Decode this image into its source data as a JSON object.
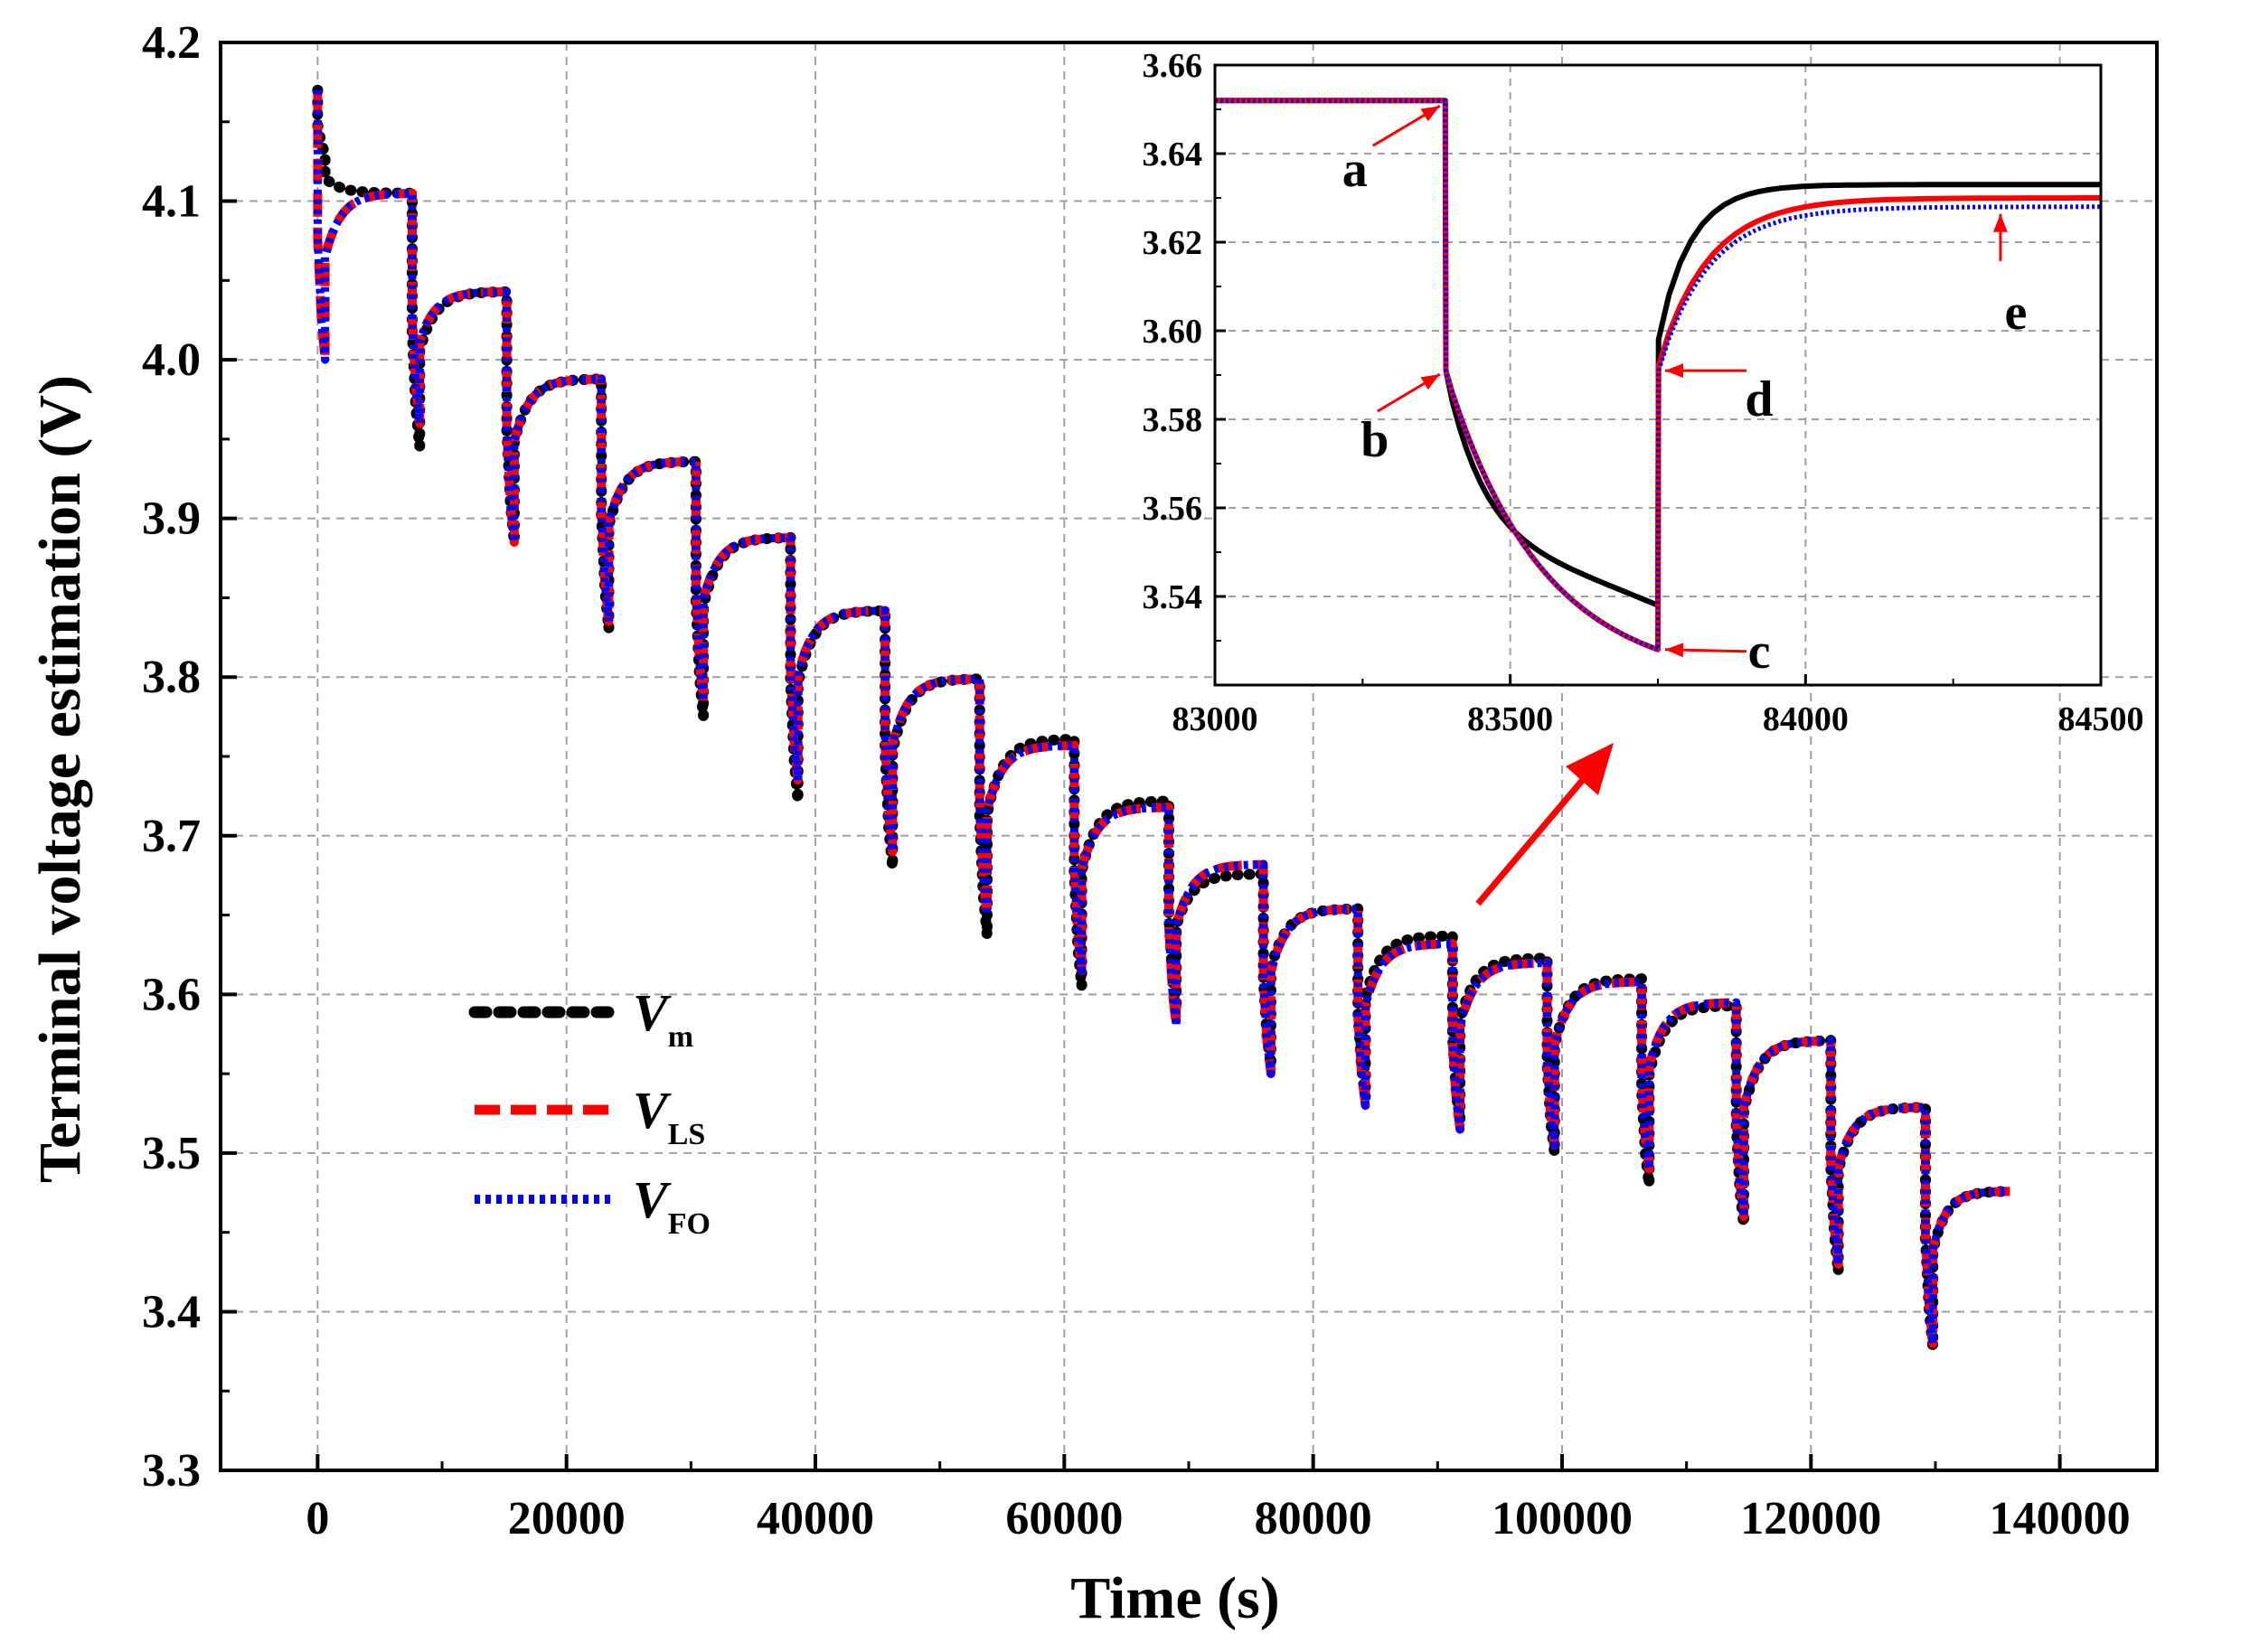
{
  "chart_data": [
    {
      "id": "main",
      "type": "line",
      "xlabel": "Time (s)",
      "ylabel": "Terminal voltage estimation  (V)",
      "xlim": [
        -7800,
        147800
      ],
      "ylim": [
        3.3,
        4.2
      ],
      "xticks": [
        0,
        20000,
        40000,
        60000,
        80000,
        100000,
        120000,
        140000
      ],
      "xtick_labels": [
        "0",
        "20000",
        "40000",
        "60000",
        "80000",
        "100000",
        "120000",
        "140000"
      ],
      "yticks": [
        3.3,
        3.4,
        3.5,
        3.6,
        3.7,
        3.8,
        3.9,
        4.0,
        4.1,
        4.2
      ],
      "ytick_labels": [
        "3.3",
        "3.4",
        "3.5",
        "3.6",
        "3.7",
        "3.8",
        "3.9",
        "4.0",
        "4.1",
        "4.2"
      ],
      "grid": true,
      "legend_position": "lower-left",
      "series": [
        {
          "name": "V_m",
          "label_main": "V",
          "label_sub": "m",
          "color": "#000000",
          "style": "dotted-heavy"
        },
        {
          "name": "V_LS",
          "label_main": "V",
          "label_sub": "LS",
          "color": "#ff0000",
          "style": "dashed"
        },
        {
          "name": "V_FO",
          "label_main": "V",
          "label_sub": "FO",
          "color": "#0000ff",
          "style": "dotted"
        }
      ],
      "pulses": [
        {
          "start": 0,
          "v_end": 4.105,
          "dip": 4.0,
          "dip_m": 4.13,
          "rest_m": 4.105
        },
        {
          "start": 7600,
          "v_end": 4.043,
          "dip": 3.96,
          "dip_m": 3.945,
          "rest_m": 4.043
        },
        {
          "start": 15200,
          "v_end": 3.988,
          "dip": 3.885,
          "dip_m": 3.885,
          "rest_m": 3.988
        },
        {
          "start": 22800,
          "v_end": 3.936,
          "dip": 3.835,
          "dip_m": 3.83,
          "rest_m": 3.936
        },
        {
          "start": 30400,
          "v_end": 3.888,
          "dip": 3.785,
          "dip_m": 3.775,
          "rest_m": 3.888
        },
        {
          "start": 38000,
          "v_end": 3.842,
          "dip": 3.735,
          "dip_m": 3.722,
          "rest_m": 3.842
        },
        {
          "start": 45600,
          "v_end": 3.799,
          "dip": 3.69,
          "dip_m": 3.68,
          "rest_m": 3.799
        },
        {
          "start": 53200,
          "v_end": 3.757,
          "dip": 3.65,
          "dip_m": 3.637,
          "rest_m": 3.761
        },
        {
          "start": 60800,
          "v_end": 3.718,
          "dip": 3.615,
          "dip_m": 3.605,
          "rest_m": 3.722
        },
        {
          "start": 68400,
          "v_end": 3.682,
          "dip": 3.58,
          "dip_m": 3.59,
          "rest_m": 3.676
        },
        {
          "start": 76000,
          "v_end": 3.654,
          "dip": 3.55,
          "dip_m": 3.555,
          "rest_m": 3.654
        },
        {
          "start": 83600,
          "v_end": 3.632,
          "dip": 3.53,
          "dip_m": 3.535,
          "rest_m": 3.637
        },
        {
          "start": 91200,
          "v_end": 3.62,
          "dip": 3.515,
          "dip_m": 3.52,
          "rest_m": 3.623
        },
        {
          "start": 98800,
          "v_end": 3.608,
          "dip": 3.505,
          "dip_m": 3.5,
          "rest_m": 3.61
        },
        {
          "start": 106400,
          "v_end": 3.595,
          "dip": 3.49,
          "dip_m": 3.48,
          "rest_m": 3.593
        },
        {
          "start": 114000,
          "v_end": 3.571,
          "dip": 3.46,
          "dip_m": 3.455,
          "rest_m": 3.571
        },
        {
          "start": 121600,
          "v_end": 3.529,
          "dip": 3.43,
          "dip_m": 3.425,
          "rest_m": 3.529
        },
        {
          "start": 129200,
          "v_end": 3.476,
          "dip": 3.38,
          "dip_m": 3.378,
          "rest_m": 3.476
        }
      ],
      "initial_value": 4.17,
      "end_time": 136000
    },
    {
      "id": "inset",
      "type": "line",
      "xlim": [
        83000,
        84500
      ],
      "ylim": [
        3.52,
        3.66
      ],
      "xticks": [
        83000,
        83500,
        84000,
        84500
      ],
      "xtick_labels": [
        "83000",
        "83500",
        "84000",
        "84500"
      ],
      "yticks": [
        3.54,
        3.56,
        3.58,
        3.6,
        3.62,
        3.64,
        3.66
      ],
      "ytick_labels": [
        "3.54",
        "3.56",
        "3.58",
        "3.60",
        "3.62",
        "3.64",
        "3.66"
      ],
      "grid": true,
      "rest_voltage": 3.652,
      "pulse_on": 83390,
      "pulse_off": 83750,
      "after_drop": 3.591,
      "end_of_pulse": {
        "V_m": 3.538,
        "V_LS": 3.528,
        "V_FO": 3.528
      },
      "recovery_start": {
        "V_m": 3.598,
        "V_LS": 3.592,
        "V_FO": 3.591
      },
      "recovery_final": {
        "V_m": 3.633,
        "V_LS": 3.63,
        "V_FO": 3.628
      },
      "annotations": [
        {
          "label": "a",
          "x": 83390,
          "y": 3.652
        },
        {
          "label": "b",
          "x": 83390,
          "y": 3.591
        },
        {
          "label": "c",
          "x": 83750,
          "y": 3.528
        },
        {
          "label": "d",
          "x": 83750,
          "y": 3.591
        },
        {
          "label": "e",
          "x": 84330,
          "y": 3.628
        }
      ]
    }
  ],
  "colors": {
    "accent": "#ff0000",
    "axis": "#000000",
    "grid": "#a0a0a0"
  }
}
